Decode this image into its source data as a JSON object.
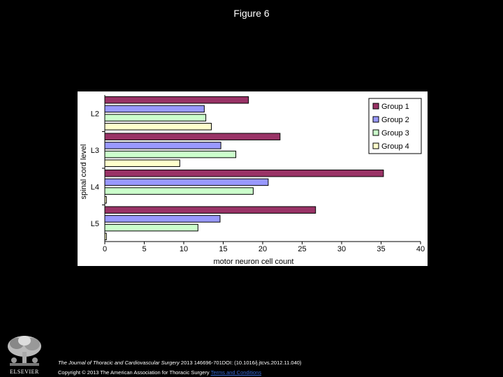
{
  "slide": {
    "title": "Figure 6"
  },
  "footer": {
    "journal": "The Journal of Thoracic and Cardiovascular Surgery",
    "citation": " 2013 146696-701DOI: (10.1016/j.jtcvs.2012.11.040) ",
    "copyright": "Copyright © 2013 The American Association for Thoracic Surgery ",
    "terms_link": "Terms and Conditions",
    "publisher_logo_text": "ELSEVIER"
  },
  "chart_data": {
    "type": "bar",
    "orientation": "horizontal",
    "title": "",
    "xlabel": "motor neuron cell count",
    "ylabel": "spinal cord level",
    "categories": [
      "L2",
      "L3",
      "L4",
      "L5"
    ],
    "xlim": [
      0,
      40
    ],
    "x_ticks": [
      "0",
      "5",
      "10",
      "15",
      "20",
      "25",
      "30",
      "35",
      "40"
    ],
    "grid": false,
    "legend_position": "top-right",
    "series": [
      {
        "name": "Group 1",
        "color": "#993366",
        "values": [
          18.2,
          22.2,
          35.3,
          26.7
        ]
      },
      {
        "name": "Group 2",
        "color": "#9999ff",
        "values": [
          12.6,
          14.7,
          20.7,
          14.6
        ]
      },
      {
        "name": "Group 3",
        "color": "#ccffcc",
        "values": [
          12.8,
          16.6,
          18.8,
          11.8
        ]
      },
      {
        "name": "Group 4",
        "color": "#ffffcc",
        "values": [
          13.5,
          9.5,
          0.2,
          0.2
        ]
      }
    ]
  }
}
